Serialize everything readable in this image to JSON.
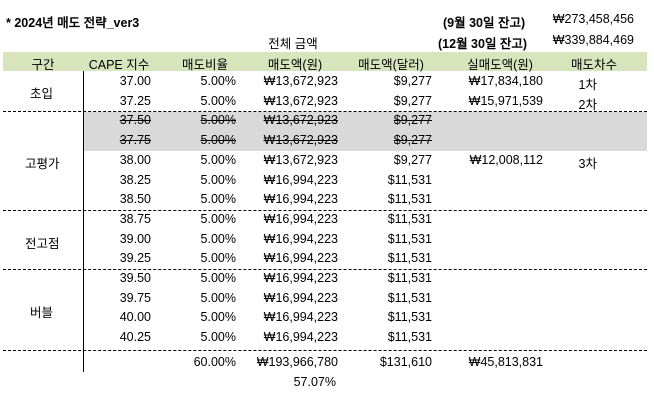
{
  "title": "* 2024년 매도 전략_ver3",
  "balance": [
    {
      "label": "(9월 30일 잔고)",
      "value": "₩273,458,456"
    },
    {
      "label": "(12월 30일 잔고)",
      "value": "₩339,884,469"
    }
  ],
  "total_amount_label": "전체 금액",
  "headers": [
    "구간",
    "CAPE 지수",
    "매도비율",
    "매도액(원)",
    "매도액(달러)",
    "실매도액(원)",
    "매도차수"
  ],
  "sections": [
    {
      "name": "초입",
      "rows": [
        {
          "cape": "37.00",
          "ratio": "5.00%",
          "krw": "₩13,672,923",
          "usd": "$9,277",
          "actual": "₩17,834,180",
          "round": "1차",
          "struck": false
        },
        {
          "cape": "37.25",
          "ratio": "5.00%",
          "krw": "₩13,672,923",
          "usd": "$9,277",
          "actual": "₩15,971,539",
          "round": "2차",
          "struck": false
        }
      ]
    },
    {
      "name": "고평가",
      "rows": [
        {
          "cape": "37.50",
          "ratio": "5.00%",
          "krw": "₩13,672,923",
          "usd": "$9,277",
          "actual": "",
          "round": "",
          "struck": true
        },
        {
          "cape": "37.75",
          "ratio": "5.00%",
          "krw": "₩13,672,923",
          "usd": "$9,277",
          "actual": "",
          "round": "",
          "struck": true
        },
        {
          "cape": "38.00",
          "ratio": "5.00%",
          "krw": "₩13,672,923",
          "usd": "$9,277",
          "actual": "₩12,008,112",
          "round": "3차",
          "struck": false
        },
        {
          "cape": "38.25",
          "ratio": "5.00%",
          "krw": "₩16,994,223",
          "usd": "$11,531",
          "actual": "",
          "round": "",
          "struck": false
        },
        {
          "cape": "38.50",
          "ratio": "5.00%",
          "krw": "₩16,994,223",
          "usd": "$11,531",
          "actual": "",
          "round": "",
          "struck": false
        }
      ]
    },
    {
      "name": "전고점",
      "rows": [
        {
          "cape": "38.75",
          "ratio": "5.00%",
          "krw": "₩16,994,223",
          "usd": "$11,531",
          "actual": "",
          "round": "",
          "struck": false
        },
        {
          "cape": "39.00",
          "ratio": "5.00%",
          "krw": "₩16,994,223",
          "usd": "$11,531",
          "actual": "",
          "round": "",
          "struck": false
        },
        {
          "cape": "39.25",
          "ratio": "5.00%",
          "krw": "₩16,994,223",
          "usd": "$11,531",
          "actual": "",
          "round": "",
          "struck": false
        }
      ]
    },
    {
      "name": "버블",
      "rows": [
        {
          "cape": "39.50",
          "ratio": "5.00%",
          "krw": "₩16,994,223",
          "usd": "$11,531",
          "actual": "",
          "round": "",
          "struck": false
        },
        {
          "cape": "39.75",
          "ratio": "5.00%",
          "krw": "₩16,994,223",
          "usd": "$11,531",
          "actual": "",
          "round": "",
          "struck": false
        },
        {
          "cape": "40.00",
          "ratio": "5.00%",
          "krw": "₩16,994,223",
          "usd": "$11,531",
          "actual": "",
          "round": "",
          "struck": false
        },
        {
          "cape": "40.25",
          "ratio": "5.00%",
          "krw": "₩16,994,223",
          "usd": "$11,531",
          "actual": "",
          "round": "",
          "struck": false
        }
      ]
    }
  ],
  "totals": {
    "ratio": "60.00%",
    "krw": "₩193,966,780",
    "usd": "$131,610",
    "actual": "₩45,813,831"
  },
  "total_percent": "57.07%"
}
